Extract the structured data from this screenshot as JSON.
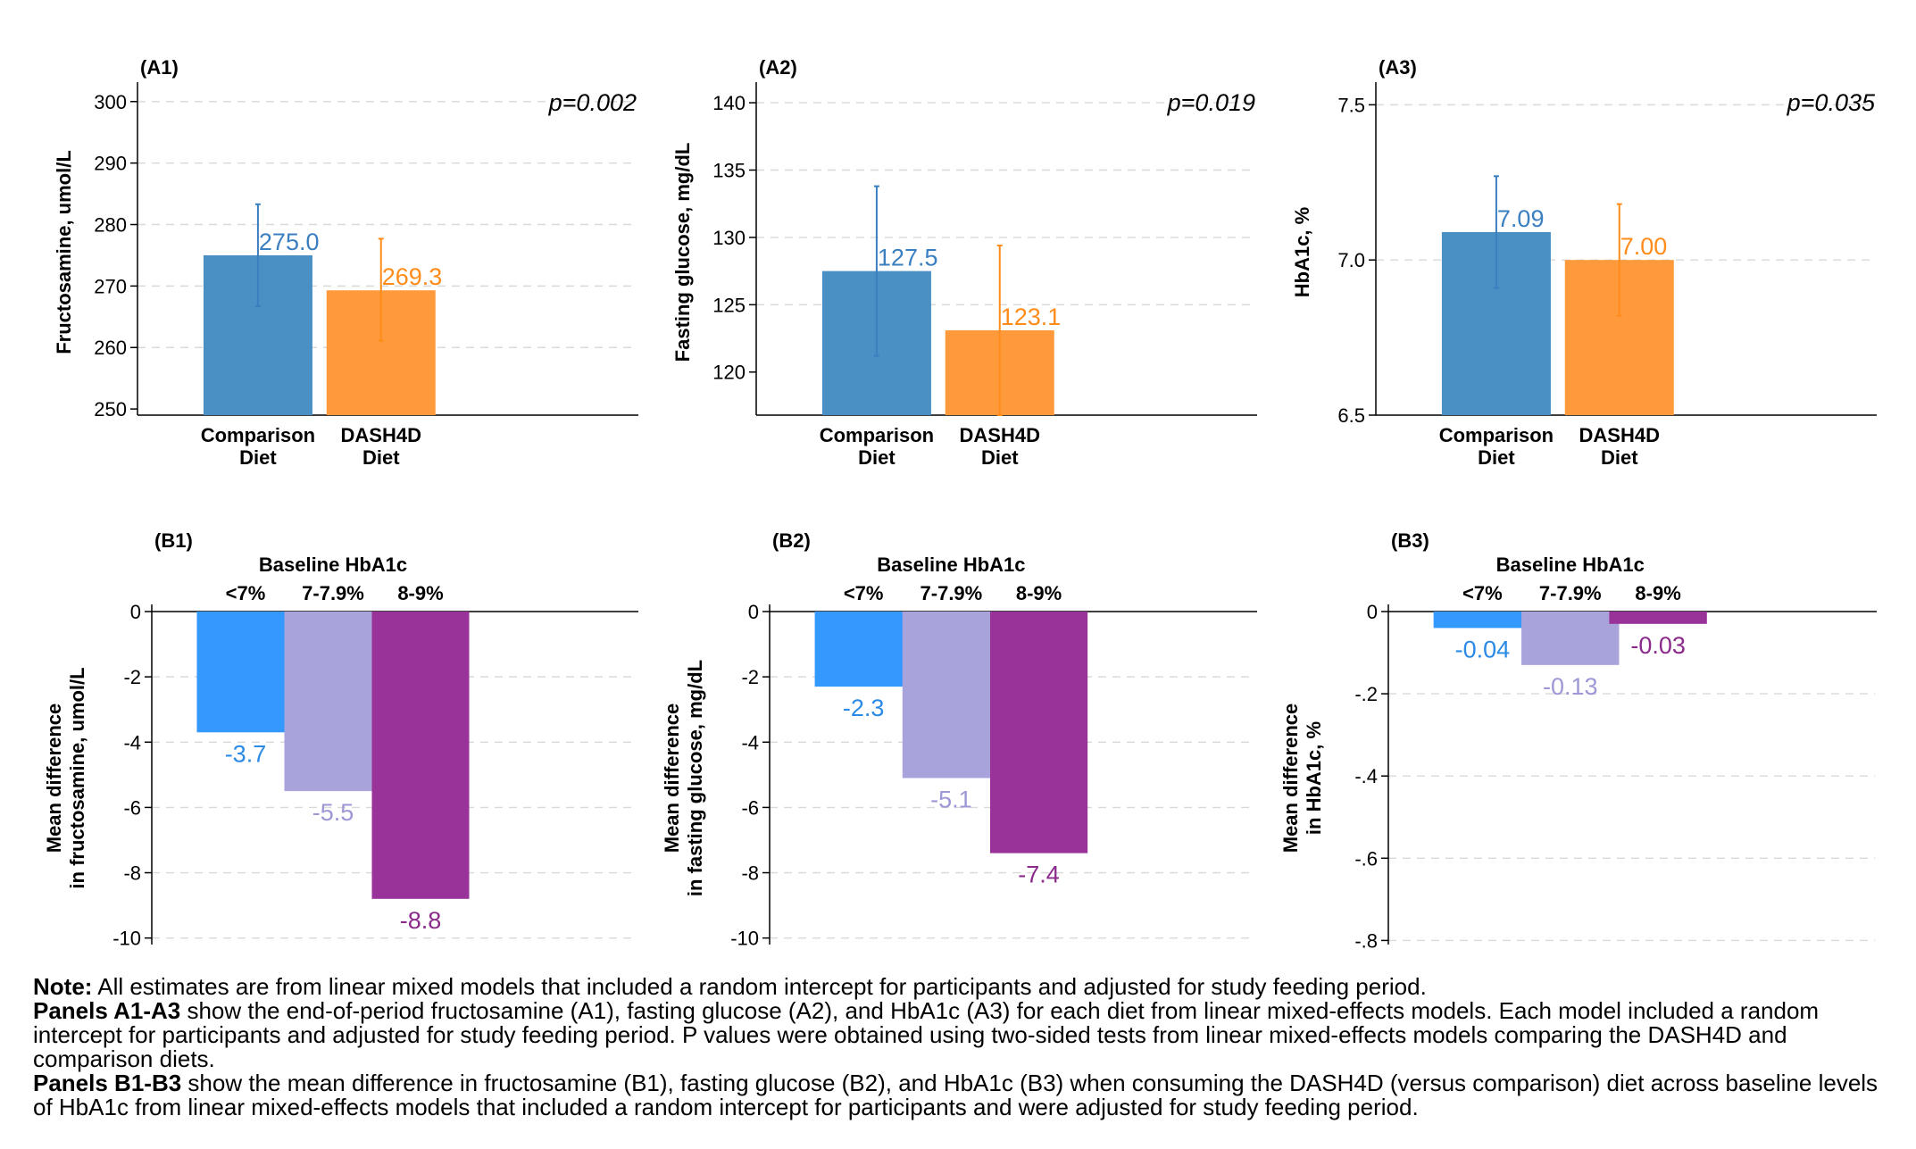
{
  "chart_data": [
    {
      "id": "A1",
      "type": "bar",
      "panel_label": "(A1)",
      "ylabel": "Fructosamine, umol/L",
      "categories": [
        "Comparison Diet",
        "DASH4D Diet"
      ],
      "category_lines": [
        [
          "Comparison",
          "Diet"
        ],
        [
          "DASH4D",
          "Diet"
        ]
      ],
      "values": [
        275.0,
        269.3
      ],
      "value_labels": [
        "275.0",
        "269.3"
      ],
      "ci_low": [
        266.7,
        261.1
      ],
      "ci_high": [
        283.3,
        277.7
      ],
      "ylim": [
        249,
        302
      ],
      "yticks": [
        250,
        260,
        270,
        280,
        290,
        300
      ],
      "ytick_labels": [
        "250",
        "260",
        "270",
        "280",
        "290",
        "300"
      ],
      "colors": [
        "#4a90c4",
        "#ff9a3c"
      ],
      "label_colors": [
        "#3a7fc0",
        "#ff8c1a"
      ],
      "p_value": "p=0.002"
    },
    {
      "id": "A2",
      "type": "bar",
      "panel_label": "(A2)",
      "ylabel": "Fasting glucose, mg/dL",
      "categories": [
        "Comparison Diet",
        "DASH4D Diet"
      ],
      "category_lines": [
        [
          "Comparison",
          "Diet"
        ],
        [
          "DASH4D",
          "Diet"
        ]
      ],
      "values": [
        127.5,
        123.1
      ],
      "value_labels": [
        "127.5",
        "123.1"
      ],
      "ci_low": [
        121.2,
        116.8
      ],
      "ci_high": [
        133.8,
        129.4
      ],
      "ylim": [
        116.8,
        141
      ],
      "yticks": [
        120,
        125,
        130,
        135,
        140
      ],
      "ytick_labels": [
        "120",
        "125",
        "130",
        "135",
        "140"
      ],
      "colors": [
        "#4a90c4",
        "#ff9a3c"
      ],
      "label_colors": [
        "#3a7fc0",
        "#ff8c1a"
      ],
      "p_value": "p=0.019"
    },
    {
      "id": "A3",
      "type": "bar",
      "panel_label": "(A3)",
      "ylabel": "HbA1c, %",
      "categories": [
        "Comparison Diet",
        "DASH4D Diet"
      ],
      "category_lines": [
        [
          "Comparison",
          "Diet"
        ],
        [
          "DASH4D",
          "Diet"
        ]
      ],
      "values": [
        7.09,
        7.0
      ],
      "value_labels": [
        "7.09",
        "7.00"
      ],
      "ci_low": [
        6.91,
        6.82
      ],
      "ci_high": [
        7.27,
        7.18
      ],
      "ylim": [
        6.5,
        7.55
      ],
      "yticks": [
        6.5,
        7.0,
        7.5
      ],
      "ytick_labels": [
        "6.5",
        "7.0",
        "7.5"
      ],
      "colors": [
        "#4a90c4",
        "#ff9a3c"
      ],
      "label_colors": [
        "#3a7fc0",
        "#ff8c1a"
      ],
      "p_value": "p=0.035"
    },
    {
      "id": "B1",
      "type": "bar",
      "panel_label": "(B1)",
      "group_title": "Baseline HbA1c",
      "ylabel_lines": [
        "Mean difference",
        "in fructosamine, umol/L"
      ],
      "categories": [
        "<7%",
        "7-7.9%",
        "8-9%"
      ],
      "values": [
        -3.7,
        -5.5,
        -8.8
      ],
      "value_labels": [
        "-3.7",
        "-5.5",
        "-8.8"
      ],
      "ylim": [
        -10.2,
        0
      ],
      "yticks": [
        0,
        -2,
        -4,
        -6,
        -8,
        -10
      ],
      "ytick_labels": [
        "0",
        "-2",
        "-4",
        "-6",
        "-8",
        "-10"
      ],
      "colors": [
        "#3399ff",
        "#a9a3dc",
        "#993399"
      ],
      "label_colors": [
        "#2a8ae6",
        "#9d97d6",
        "#8a2a8a"
      ]
    },
    {
      "id": "B2",
      "type": "bar",
      "panel_label": "(B2)",
      "group_title": "Baseline HbA1c",
      "ylabel_lines": [
        "Mean difference",
        "in fasting glucose, mg/dL"
      ],
      "categories": [
        "<7%",
        "7-7.9%",
        "8-9%"
      ],
      "values": [
        -2.3,
        -5.1,
        -7.4
      ],
      "value_labels": [
        "-2.3",
        "-5.1",
        "-7.4"
      ],
      "ylim": [
        -10.2,
        0
      ],
      "yticks": [
        0,
        -2,
        -4,
        -6,
        -8,
        -10
      ],
      "ytick_labels": [
        "0",
        "-2",
        "-4",
        "-6",
        "-8",
        "-10"
      ],
      "colors": [
        "#3399ff",
        "#a9a3dc",
        "#993399"
      ],
      "label_colors": [
        "#2a8ae6",
        "#9d97d6",
        "#8a2a8a"
      ]
    },
    {
      "id": "B3",
      "type": "bar",
      "panel_label": "(B3)",
      "group_title": "Baseline HbA1c",
      "ylabel_lines": [
        "Mean difference",
        "in HbA1c, %"
      ],
      "categories": [
        "<7%",
        "7-7.9%",
        "8-9%"
      ],
      "values": [
        -0.04,
        -0.13,
        -0.03
      ],
      "value_labels": [
        "-0.04",
        "-0.13",
        "-0.03"
      ],
      "ylim": [
        -0.81,
        0
      ],
      "yticks": [
        0,
        -0.2,
        -0.4,
        -0.6,
        -0.8
      ],
      "ytick_labels": [
        "0",
        "-.2",
        "-.4",
        "-.6",
        "-.8"
      ],
      "colors": [
        "#3399ff",
        "#a9a3dc",
        "#993399"
      ],
      "label_colors": [
        "#2a8ae6",
        "#9d97d6",
        "#8a2a8a"
      ]
    }
  ],
  "note": {
    "lines": [
      {
        "lead": "Note:",
        "text": " All estimates are from linear mixed models that included a random intercept for participants and adjusted for study feeding period."
      },
      {
        "lead": "Panels A1-A3",
        "text": " show the end-of-period fructosamine (A1), fasting glucose (A2), and HbA1c (A3) for each diet from linear mixed-effects models. Each model included a random intercept for participants and adjusted for study feeding period. P values were obtained using two-sided tests from linear mixed-effects models comparing the DASH4D and comparison diets."
      },
      {
        "lead": "Panels B1-B3",
        "text": " show the mean difference in fructosamine (B1), fasting glucose (B2), and HbA1c (B3) when consuming the DASH4D (versus comparison) diet across baseline levels of HbA1c from linear mixed-effects models that included a random intercept for participants and were adjusted for study feeding period."
      }
    ]
  }
}
